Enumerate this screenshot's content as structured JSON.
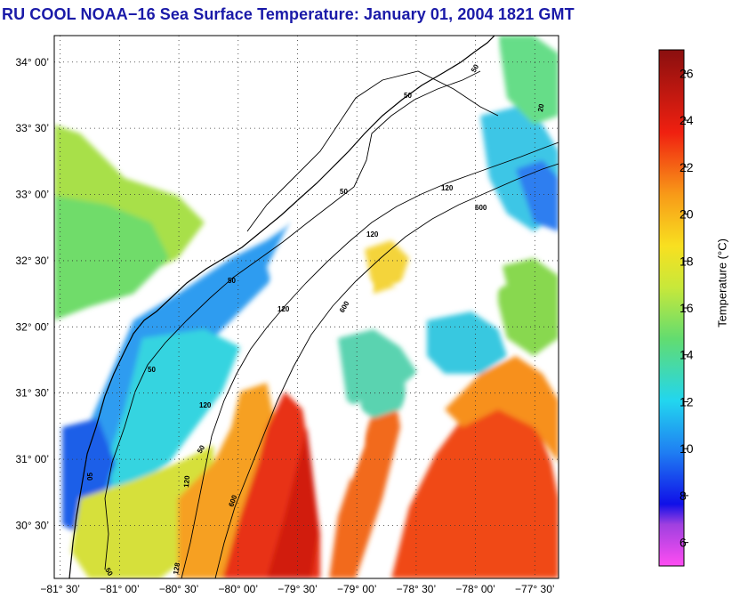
{
  "title": "RU COOL  NOAA−16  Sea Surface Temperature:  January 01, 2004 1821 GMT",
  "map": {
    "lat_labels": [
      {
        "text": "34° 00’",
        "lat": 34.0
      },
      {
        "text": "33° 30’",
        "lat": 33.5
      },
      {
        "text": "33° 00’",
        "lat": 33.0
      },
      {
        "text": "32° 30’",
        "lat": 32.5
      },
      {
        "text": "32° 00’",
        "lat": 32.0
      },
      {
        "text": "31° 30’",
        "lat": 31.5
      },
      {
        "text": "31° 00’",
        "lat": 31.0
      },
      {
        "text": "30° 30’",
        "lat": 30.5
      }
    ],
    "lon_labels": [
      {
        "text": "−81° 30’",
        "lon": -81.5
      },
      {
        "text": "−81° 00’",
        "lon": -81.0
      },
      {
        "text": "−80° 30’",
        "lon": -80.5
      },
      {
        "text": "−80° 00’",
        "lon": -80.0
      },
      {
        "text": "−79° 30’",
        "lon": -79.5
      },
      {
        "text": "−79° 00’",
        "lon": -79.0
      },
      {
        "text": "−78° 30’",
        "lon": -78.5
      },
      {
        "text": "−78° 00’",
        "lon": -78.0
      },
      {
        "text": "−77° 30’",
        "lon": -77.5
      }
    ],
    "lon_range": [
      -81.55,
      -77.3
    ],
    "lat_range": [
      30.1,
      34.2
    ],
    "grid": true,
    "isobath_labels": [
      "50",
      "50",
      "50",
      "50",
      "120",
      "120",
      "120",
      "120",
      "600",
      "600",
      "600",
      "20",
      "05",
      "50",
      "50",
      "128",
      "50",
      "120"
    ]
  },
  "colorbar": {
    "label": "Temperature (°C)",
    "ticks": [
      "6",
      "8",
      "10",
      "12",
      "14",
      "16",
      "18",
      "20",
      "22",
      "24",
      "26"
    ],
    "range": [
      5,
      27
    ]
  }
}
